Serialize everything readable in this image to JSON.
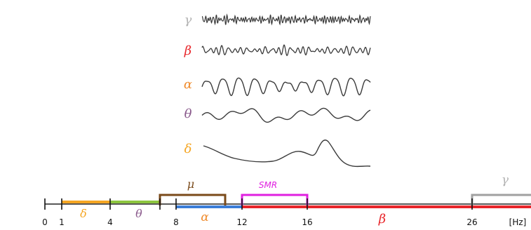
{
  "waves": [
    {
      "id": "gamma",
      "symbol": "γ",
      "color": "#b3b3b3"
    },
    {
      "id": "beta",
      "symbol": "β",
      "color": "#e8262b"
    },
    {
      "id": "alpha",
      "symbol": "α",
      "color": "#f08c2e"
    },
    {
      "id": "theta",
      "symbol": "θ",
      "color": "#8a5a8c"
    },
    {
      "id": "delta",
      "symbol": "δ",
      "color": "#f5a623"
    }
  ],
  "axis": {
    "ticks": [
      {
        "label": "0",
        "hz": 0
      },
      {
        "label": "1",
        "hz": 1
      },
      {
        "label": "4",
        "hz": 4
      },
      {
        "label": "8",
        "hz": 8
      },
      {
        "label": "12",
        "hz": 12
      },
      {
        "label": "16",
        "hz": 16
      },
      {
        "label": "26",
        "hz": 26
      }
    ],
    "unit": "[Hz]"
  },
  "bands": [
    {
      "id": "delta",
      "symbol": "δ",
      "color": "#f5a623",
      "from_hz": 1,
      "to_hz": 4
    },
    {
      "id": "theta",
      "symbol": "θ",
      "color": "#8dc63f",
      "from_hz": 4,
      "to_hz": 7
    },
    {
      "id": "alpha",
      "symbol": "α",
      "color": "#3b7dd8",
      "from_hz": 8,
      "to_hz": 12
    },
    {
      "id": "mu",
      "symbol": "μ",
      "color": "#7a4a1a",
      "from_hz": 7,
      "to_hz": 11
    },
    {
      "id": "smr",
      "symbol": "SMR",
      "color": "#e020e0",
      "from_hz": 12,
      "to_hz": 16
    },
    {
      "id": "beta",
      "symbol": "β",
      "color": "#e8262b",
      "from_hz": 12,
      "to_hz": 30
    },
    {
      "id": "gamma",
      "symbol": "γ",
      "color": "#a0a0a0",
      "from_hz": 26,
      "to_hz": 30
    }
  ]
}
